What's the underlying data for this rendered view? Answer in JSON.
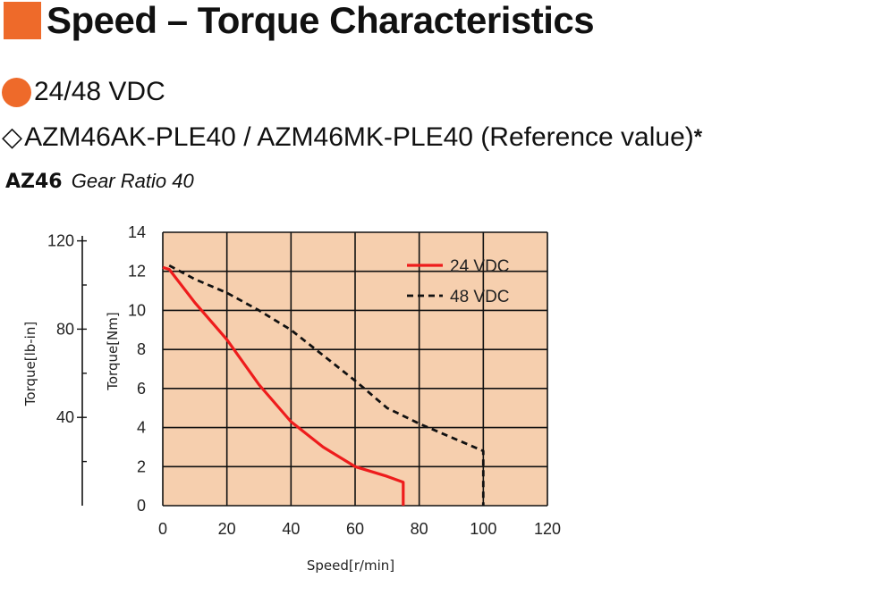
{
  "header": {
    "title": "Speed – Torque Characteristics",
    "title_square_color": "#ee6a2a"
  },
  "voltage": {
    "dot_color": "#ee6a2a",
    "text": "24/48 VDC"
  },
  "model": {
    "icon": "diamond-outline-icon",
    "glyph": "◇",
    "text": "AZM46AK-PLE40 / AZM46MK-PLE40 (Reference value)",
    "asterisk": "*"
  },
  "gear": {
    "series": "AZ46",
    "text": "Gear Ratio 40"
  },
  "chart_data": {
    "type": "line",
    "xlabel": "Speed[r/min]",
    "ylabel": "Torque[Nm]",
    "ylabel_secondary": "Torque[lb-in]",
    "xlim": [
      0,
      120
    ],
    "ylim": [
      0,
      14
    ],
    "x_ticks": [
      "0",
      "20",
      "40",
      "60",
      "80",
      "100",
      "120"
    ],
    "y_ticks": [
      "0",
      "2",
      "4",
      "6",
      "8",
      "10",
      "12",
      "14"
    ],
    "y2_ticks": [
      "40",
      "80",
      "120"
    ],
    "y2_tick_values": [
      40,
      80,
      120
    ],
    "nm_per_lbin": 0.113,
    "grid": true,
    "plot_background": "#f6cfae",
    "legend_position": "top-right",
    "series": [
      {
        "name": "24 VDC",
        "color": "#ee1c1c",
        "style": "solid",
        "points": [
          [
            0,
            12.2
          ],
          [
            2,
            12.1
          ],
          [
            10,
            10.4
          ],
          [
            20,
            8.5
          ],
          [
            30,
            6.2
          ],
          [
            40,
            4.3
          ],
          [
            50,
            3.0
          ],
          [
            60,
            2.0
          ],
          [
            70,
            1.5
          ],
          [
            75,
            1.2
          ],
          [
            75,
            0
          ]
        ]
      },
      {
        "name": "48 VDC",
        "color": "#111111",
        "style": "dashed",
        "points": [
          [
            2,
            12.3
          ],
          [
            10,
            11.6
          ],
          [
            20,
            10.9
          ],
          [
            30,
            10.0
          ],
          [
            40,
            9.0
          ],
          [
            50,
            7.7
          ],
          [
            60,
            6.4
          ],
          [
            70,
            5.0
          ],
          [
            80,
            4.2
          ],
          [
            90,
            3.5
          ],
          [
            100,
            2.8
          ],
          [
            100,
            0
          ]
        ]
      }
    ]
  }
}
